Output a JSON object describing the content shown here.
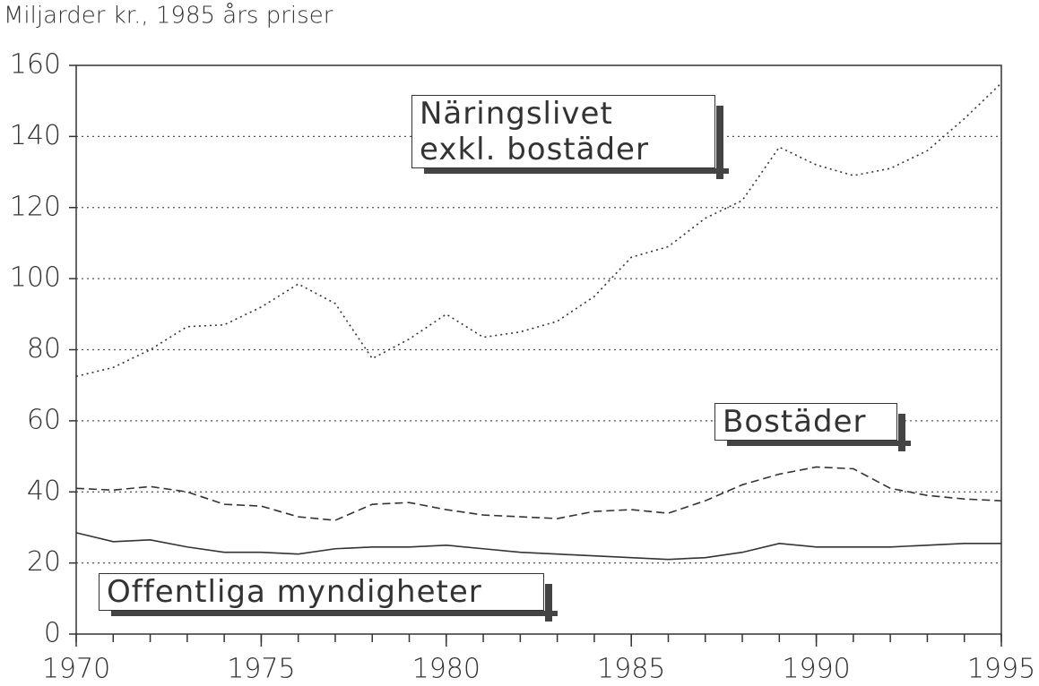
{
  "chart_data": {
    "type": "line",
    "title": "Miljarder kr., 1985 års priser",
    "x": [
      1970,
      1971,
      1972,
      1973,
      1974,
      1975,
      1976,
      1977,
      1978,
      1979,
      1980,
      1981,
      1982,
      1983,
      1984,
      1985,
      1986,
      1987,
      1988,
      1989,
      1990,
      1991,
      1992,
      1993,
      1994,
      1995
    ],
    "series": [
      {
        "name": "Näringslivet\nexkl. bostäder",
        "color": "#333333",
        "style": "dotted",
        "values": [
          72.5,
          75,
          80,
          86.5,
          87,
          92,
          98.5,
          93,
          77.5,
          83,
          90,
          83.5,
          85,
          88,
          95,
          106,
          109,
          117,
          122,
          137,
          132,
          129,
          131,
          136,
          145,
          155
        ]
      },
      {
        "name": "Bostäder",
        "color": "#333333",
        "style": "dashed",
        "values": [
          41,
          40.5,
          41.5,
          40,
          36.5,
          36,
          33,
          32,
          36.5,
          37,
          35,
          33.5,
          33,
          32.5,
          34.5,
          35,
          34,
          37.5,
          42,
          45,
          47,
          46.5,
          41,
          39,
          38,
          37.5
        ]
      },
      {
        "name": "Offentliga myndigheter",
        "color": "#333333",
        "style": "solid",
        "values": [
          28.5,
          26,
          26.5,
          24.5,
          23,
          23,
          22.5,
          24,
          24.5,
          24.5,
          25,
          24,
          23,
          22.5,
          22,
          21.5,
          21,
          21.5,
          23,
          25.5,
          24.5,
          24.5,
          24.5,
          25,
          25.5,
          25.5
        ]
      }
    ],
    "xlim": [
      1970,
      1995
    ],
    "xticks": [
      1970,
      1975,
      1980,
      1985,
      1990,
      1995
    ],
    "xminor_ticks": [
      1970,
      1971,
      1972,
      1973,
      1974,
      1975,
      1976,
      1977,
      1978,
      1979,
      1980,
      1981,
      1982,
      1983,
      1984,
      1985,
      1986,
      1987,
      1988,
      1989,
      1990,
      1991,
      1992,
      1993,
      1994,
      1995
    ],
    "ylim": [
      0,
      160
    ],
    "yticks": [
      0,
      20,
      40,
      60,
      80,
      100,
      120,
      140,
      160
    ],
    "grid": true
  }
}
